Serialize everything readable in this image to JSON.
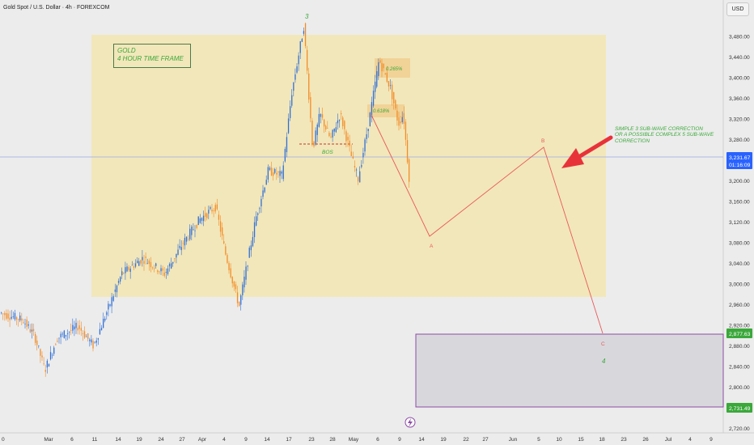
{
  "header": {
    "symbol_title": "Gold Spot / U.S. Dollar · 4h · FOREXCOM",
    "currency": "USD"
  },
  "annotations": {
    "timeframe_box": [
      "GOLD",
      "4 HOUR TIME FRAME"
    ],
    "wave_note": [
      "SIMPLE 3 SUB-WAVE CORRECTION",
      "OR A POSSIBLE COMPLEX 5 SUB-WAVE",
      "CORRECTION"
    ],
    "bos": "BOS",
    "fib_618": "0.618%",
    "fib_265": "0.265%",
    "wave_3": "3",
    "wave_4": "4",
    "wave_A": "A",
    "wave_B": "B",
    "wave_C": "C"
  },
  "price_labels": {
    "current_price": "3,231.67",
    "countdown": "01:16:09",
    "target_top": "2,877.63",
    "target_bottom": "2,731.49"
  },
  "colors": {
    "background": "#ececec",
    "zone_fill": "#f3e6b2",
    "bull": "#2f6fd6",
    "bear": "#f28c28",
    "projection": "#e85a5a",
    "label_green": "#3aa83a",
    "target_box": "#8e4aa6",
    "arrow": "#e8323a",
    "price_tag": "#2962ff"
  },
  "chart_data": {
    "type": "candlestick",
    "ylim": [
      2690,
      3510
    ],
    "y_ticks": [
      3480,
      3440,
      3400,
      3360,
      3320,
      3280,
      3240,
      3200,
      3160,
      3120,
      3080,
      3040,
      3000,
      2960,
      2920,
      2880,
      2840,
      2800,
      2760,
      2720
    ],
    "y_tick_labels": [
      "3,480.00",
      "3,440.00",
      "3,400.00",
      "3,360.00",
      "3,320.00",
      "3,280.00",
      "3,240.00",
      "3,200.00",
      "3,160.00",
      "3,120.00",
      "3,080.00",
      "3,040.00",
      "3,000.00",
      "2,960.00",
      "2,920.00",
      "2,880.00",
      "2,840.00",
      "2,800.00",
      "2,760.00",
      "2,720.00"
    ],
    "x_tick_labels": [
      "0",
      "Mar",
      "6",
      "11",
      "14",
      "19",
      "24",
      "27",
      "Apr",
      "4",
      "9",
      "14",
      "17",
      "23",
      "28",
      "May",
      "6",
      "9",
      "14",
      "19",
      "22",
      "27",
      "Jun",
      "5",
      "10",
      "15",
      "18",
      "23",
      "26",
      "Jul",
      "4",
      "9"
    ],
    "last_price": 3231.67,
    "key_points": [
      {
        "date": "Feb 28",
        "price": 2833,
        "note": "low"
      },
      {
        "date": "Mar 11",
        "price": 2880
      },
      {
        "date": "Apr 7",
        "price": 2957,
        "note": "low"
      },
      {
        "date": "Apr 22",
        "price": 3500,
        "note": "wave 3 high"
      },
      {
        "date": "Apr 23",
        "price": 3262
      },
      {
        "date": "May 1",
        "price": 3203,
        "note": "low"
      },
      {
        "date": "May 6",
        "price": 3435
      },
      {
        "date": "May 12",
        "price": 3207
      }
    ],
    "projection": [
      {
        "label": "current",
        "date": "May 12",
        "price": 3232
      },
      {
        "label": "A",
        "date": "May 16",
        "price": 3070
      },
      {
        "label": "B",
        "date": "Jun 5",
        "price": 3255
      },
      {
        "label": "C",
        "date": "Jun 18",
        "price": 2860
      },
      {
        "label": "4",
        "date": "Jun 18",
        "price": 2820
      }
    ],
    "zones": [
      {
        "name": "consolidation zone",
        "price_range": [
          2955,
          3475
        ],
        "date_range": [
          "Mar 13",
          "Jun 19"
        ]
      },
      {
        "name": "target zone",
        "price_range": [
          2731.49,
          2877.63
        ],
        "date_range": [
          "Jun 1",
          "Jul 12"
        ]
      },
      {
        "name": "fib 0.618",
        "price_range": [
          3305,
          3340
        ]
      },
      {
        "name": "fib 0.265",
        "price_range": [
          3390,
          3430
        ]
      }
    ],
    "levels": [
      {
        "name": "BOS",
        "price": 3255
      }
    ]
  }
}
